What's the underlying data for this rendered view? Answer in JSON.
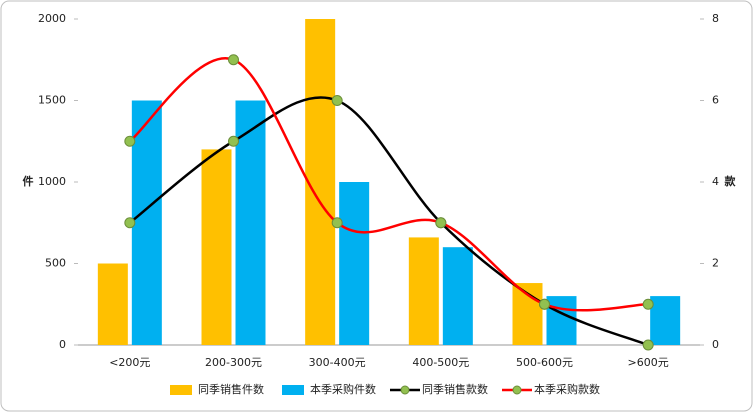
{
  "chart_data": {
    "type": "bar-line",
    "y_label": "件",
    "y2_label": "款",
    "categories": [
      "<200元",
      "200-300元",
      "300-400元",
      "400-500元",
      "500-600元",
      ">600元"
    ],
    "series": [
      {
        "name": "同季销售件数",
        "type": "bar",
        "color": "#ffc000",
        "values": [
          500,
          1200,
          2000,
          660,
          380,
          0
        ]
      },
      {
        "name": "本季采购件数",
        "type": "bar",
        "color": "#00b0f0",
        "values": [
          1500,
          1500,
          1000,
          600,
          300,
          300
        ]
      },
      {
        "name": "同季销售款数",
        "type": "line",
        "axis": "y2",
        "color": "#000000",
        "marker_color": "#92c050",
        "values": [
          3,
          5,
          6,
          3,
          1,
          0
        ]
      },
      {
        "name": "本季采购款数",
        "type": "line",
        "axis": "y2",
        "color": "#ff0000",
        "marker_color": "#92c050",
        "values": [
          5,
          7,
          3,
          3,
          1,
          1
        ]
      }
    ],
    "ylim": [
      0,
      2000
    ],
    "yticks": [
      0,
      500,
      1000,
      1500,
      2000
    ],
    "y2lim": [
      0,
      8
    ],
    "y2ticks": [
      0,
      2,
      4,
      6,
      8
    ],
    "grid": false,
    "legend": "bottom"
  }
}
